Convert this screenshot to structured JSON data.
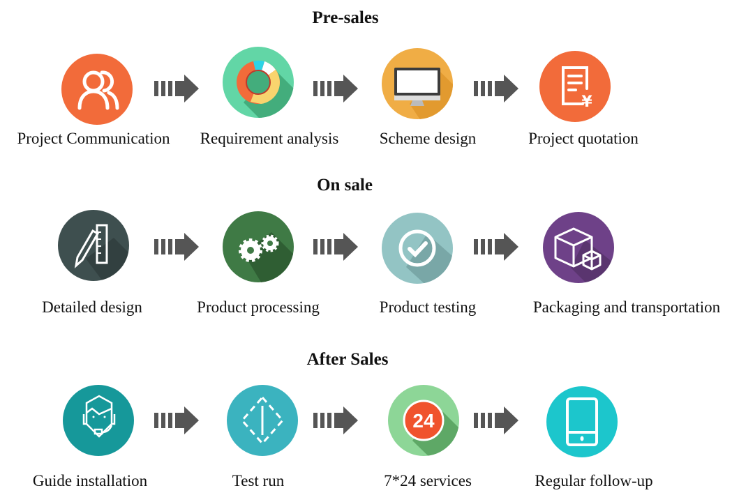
{
  "sections": [
    {
      "title": "Pre-sales",
      "steps": [
        {
          "label": "Project Communication",
          "icon": "users-icon",
          "color": "#f26b3a"
        },
        {
          "label": "Requirement analysis",
          "icon": "donut-chart-icon",
          "color": "#62d6a6"
        },
        {
          "label": "Scheme design",
          "icon": "monitor-icon",
          "color": "#f0ad45"
        },
        {
          "label": "Project quotation",
          "icon": "quotation-yen-icon",
          "color": "#f26b3a"
        }
      ]
    },
    {
      "title": "On sale",
      "steps": [
        {
          "label": "Detailed design",
          "icon": "pencil-ruler-icon",
          "color": "#3e4f4f"
        },
        {
          "label": "Product processing",
          "icon": "gears-icon",
          "color": "#3f7a45"
        },
        {
          "label": "Product testing",
          "icon": "check-circle-icon",
          "color": "#93c4c4"
        },
        {
          "label": "Packaging and transportation",
          "icon": "package-boxes-icon",
          "color": "#6e4188"
        }
      ]
    },
    {
      "title": "After Sales",
      "steps": [
        {
          "label": "Guide installation",
          "icon": "headset-agent-icon",
          "color": "#16989a"
        },
        {
          "label": "Test run",
          "icon": "diamond-run-icon",
          "color": "#3bb3bf"
        },
        {
          "label": "7*24 services",
          "icon": "24-hours-icon",
          "color": "#8dd697",
          "badge": "24"
        },
        {
          "label": "Regular follow-up",
          "icon": "mobile-phone-icon",
          "color": "#1cc6cc"
        }
      ]
    }
  ],
  "arrow_color": "#555555"
}
